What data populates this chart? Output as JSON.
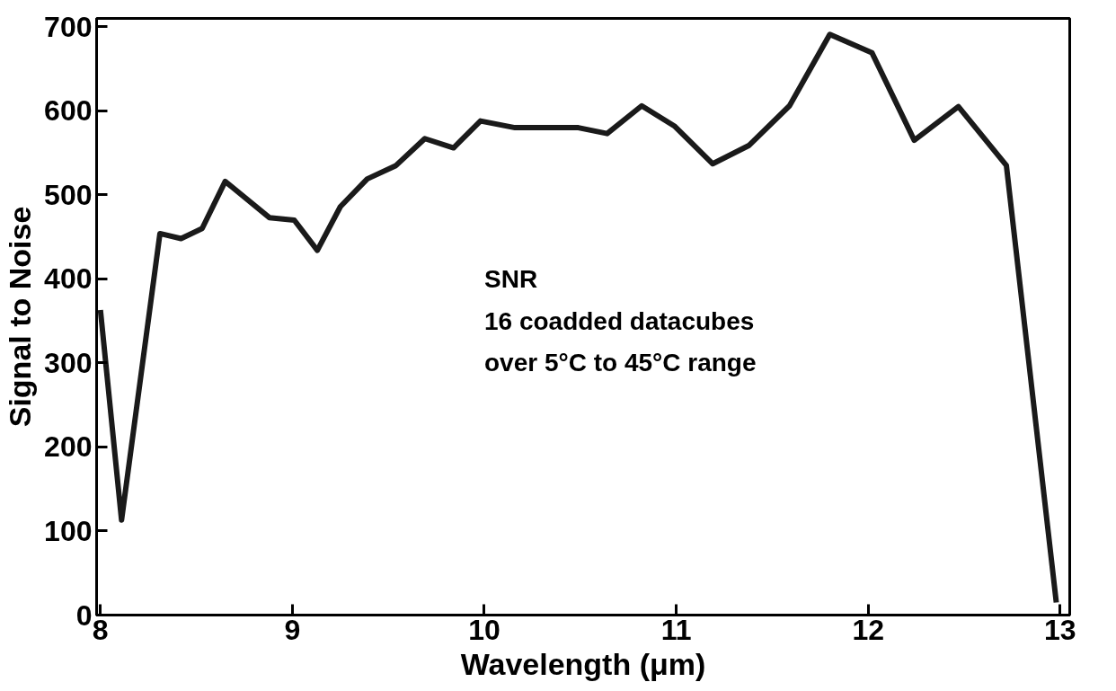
{
  "chart_data": {
    "type": "line",
    "xlabel": "Wavelength (μm)",
    "ylabel": "Signal to Noise",
    "annotations": [
      "SNR",
      "16  coadded  datacubes",
      "over  5°C  to  45°C  range"
    ],
    "xlim": [
      7.98,
      13.05
    ],
    "ylim": [
      0,
      710
    ],
    "xticks": [
      8,
      9,
      10,
      11,
      12,
      13
    ],
    "yticks": [
      0,
      100,
      200,
      300,
      400,
      500,
      600,
      700
    ],
    "grid": false,
    "line_style": "solid",
    "marker": "none",
    "series": [
      {
        "color": "#1a1a1a",
        "x": [
          8.0,
          8.11,
          8.31,
          8.42,
          8.53,
          8.65,
          8.88,
          9.01,
          9.13,
          9.25,
          9.39,
          9.54,
          9.69,
          9.84,
          9.98,
          10.16,
          10.49,
          10.64,
          10.82,
          10.99,
          11.19,
          11.38,
          11.59,
          11.8,
          12.02,
          12.24,
          12.47,
          12.72,
          12.98
        ],
        "values": [
          363,
          113,
          454,
          448,
          460,
          516,
          473,
          470,
          434,
          486,
          519,
          535,
          567,
          556,
          588,
          580,
          580,
          573,
          606,
          582,
          537,
          559,
          606,
          691,
          669,
          565,
          605,
          535,
          15
        ]
      }
    ]
  }
}
